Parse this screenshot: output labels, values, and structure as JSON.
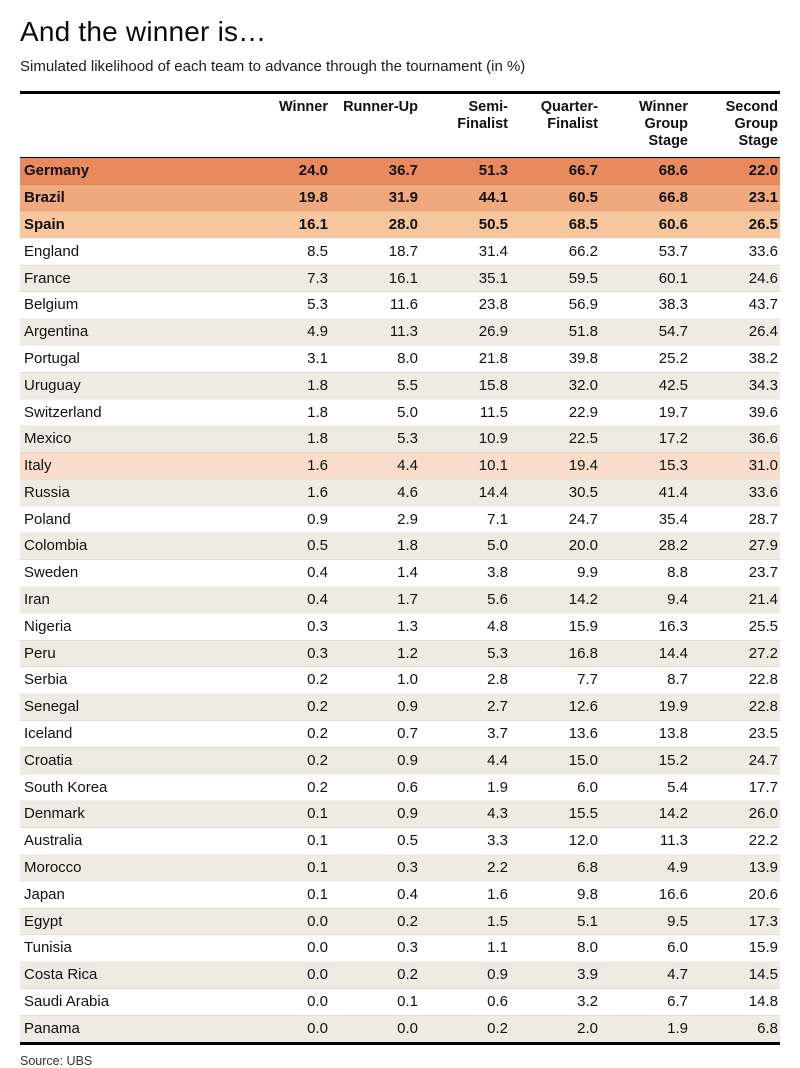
{
  "title": "And the winner is…",
  "subtitle": "Simulated likelihood of each team to advance through the tournament (in %)",
  "source": "Source: UBS",
  "colors": {
    "rank1": "#e98a5e",
    "rank2": "#f0a87d",
    "rank3": "#f6c69e",
    "italy": "#f9ddca",
    "stripe": "#eeebe3"
  },
  "chart_data": {
    "type": "table",
    "title": "And the winner is…",
    "subtitle": "Simulated likelihood of each team to advance through the tournament (in %)",
    "columns": [
      "Winner",
      "Runner-Up",
      "Semi-\nFinalist",
      "Quarter-\nFinalist",
      "Winner\nGroup\nStage",
      "Second\nGroup\nStage"
    ],
    "rows": [
      {
        "team": "Germany",
        "values": [
          24.0,
          36.7,
          51.3,
          66.7,
          68.6,
          22.0
        ],
        "highlight": "rank1",
        "bold": true
      },
      {
        "team": "Brazil",
        "values": [
          19.8,
          31.9,
          44.1,
          60.5,
          66.8,
          23.1
        ],
        "highlight": "rank2",
        "bold": true
      },
      {
        "team": "Spain",
        "values": [
          16.1,
          28.0,
          50.5,
          68.5,
          60.6,
          26.5
        ],
        "highlight": "rank3",
        "bold": true
      },
      {
        "team": "England",
        "values": [
          8.5,
          18.7,
          31.4,
          66.2,
          53.7,
          33.6
        ]
      },
      {
        "team": "France",
        "values": [
          7.3,
          16.1,
          35.1,
          59.5,
          60.1,
          24.6
        ]
      },
      {
        "team": "Belgium",
        "values": [
          5.3,
          11.6,
          23.8,
          56.9,
          38.3,
          43.7
        ]
      },
      {
        "team": "Argentina",
        "values": [
          4.9,
          11.3,
          26.9,
          51.8,
          54.7,
          26.4
        ]
      },
      {
        "team": "Portugal",
        "values": [
          3.1,
          8.0,
          21.8,
          39.8,
          25.2,
          38.2
        ]
      },
      {
        "team": "Uruguay",
        "values": [
          1.8,
          5.5,
          15.8,
          32.0,
          42.5,
          34.3
        ]
      },
      {
        "team": "Switzerland",
        "values": [
          1.8,
          5.0,
          11.5,
          22.9,
          19.7,
          39.6
        ]
      },
      {
        "team": "Mexico",
        "values": [
          1.8,
          5.3,
          10.9,
          22.5,
          17.2,
          36.6
        ]
      },
      {
        "team": "Italy",
        "values": [
          1.6,
          4.4,
          10.1,
          19.4,
          15.3,
          31.0
        ],
        "highlight": "italy"
      },
      {
        "team": "Russia",
        "values": [
          1.6,
          4.6,
          14.4,
          30.5,
          41.4,
          33.6
        ]
      },
      {
        "team": "Poland",
        "values": [
          0.9,
          2.9,
          7.1,
          24.7,
          35.4,
          28.7
        ]
      },
      {
        "team": "Colombia",
        "values": [
          0.5,
          1.8,
          5.0,
          20.0,
          28.2,
          27.9
        ]
      },
      {
        "team": "Sweden",
        "values": [
          0.4,
          1.4,
          3.8,
          9.9,
          8.8,
          23.7
        ]
      },
      {
        "team": "Iran",
        "values": [
          0.4,
          1.7,
          5.6,
          14.2,
          9.4,
          21.4
        ]
      },
      {
        "team": "Nigeria",
        "values": [
          0.3,
          1.3,
          4.8,
          15.9,
          16.3,
          25.5
        ]
      },
      {
        "team": "Peru",
        "values": [
          0.3,
          1.2,
          5.3,
          16.8,
          14.4,
          27.2
        ]
      },
      {
        "team": "Serbia",
        "values": [
          0.2,
          1.0,
          2.8,
          7.7,
          8.7,
          22.8
        ]
      },
      {
        "team": "Senegal",
        "values": [
          0.2,
          0.9,
          2.7,
          12.6,
          19.9,
          22.8
        ]
      },
      {
        "team": "Iceland",
        "values": [
          0.2,
          0.7,
          3.7,
          13.6,
          13.8,
          23.5
        ]
      },
      {
        "team": "Croatia",
        "values": [
          0.2,
          0.9,
          4.4,
          15.0,
          15.2,
          24.7
        ]
      },
      {
        "team": "South Korea",
        "values": [
          0.2,
          0.6,
          1.9,
          6.0,
          5.4,
          17.7
        ]
      },
      {
        "team": "Denmark",
        "values": [
          0.1,
          0.9,
          4.3,
          15.5,
          14.2,
          26.0
        ]
      },
      {
        "team": "Australia",
        "values": [
          0.1,
          0.5,
          3.3,
          12.0,
          11.3,
          22.2
        ]
      },
      {
        "team": "Morocco",
        "values": [
          0.1,
          0.3,
          2.2,
          6.8,
          4.9,
          13.9
        ]
      },
      {
        "team": "Japan",
        "values": [
          0.1,
          0.4,
          1.6,
          9.8,
          16.6,
          20.6
        ]
      },
      {
        "team": "Egypt",
        "values": [
          0.0,
          0.2,
          1.5,
          5.1,
          9.5,
          17.3
        ]
      },
      {
        "team": "Tunisia",
        "values": [
          0.0,
          0.3,
          1.1,
          8.0,
          6.0,
          15.9
        ]
      },
      {
        "team": "Costa Rica",
        "values": [
          0.0,
          0.2,
          0.9,
          3.9,
          4.7,
          14.5
        ]
      },
      {
        "team": "Saudi Arabia",
        "values": [
          0.0,
          0.1,
          0.6,
          3.2,
          6.7,
          14.8
        ]
      },
      {
        "team": "Panama",
        "values": [
          0.0,
          0.0,
          0.2,
          2.0,
          1.9,
          6.8
        ]
      }
    ]
  }
}
